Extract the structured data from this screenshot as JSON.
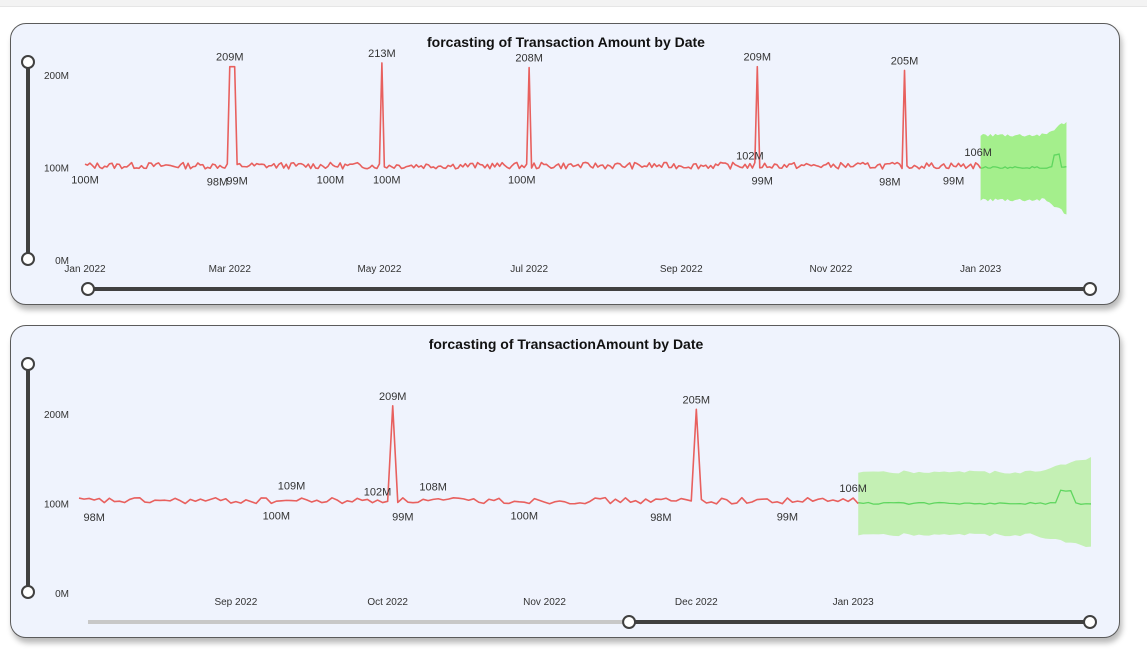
{
  "chart_data": [
    {
      "type": "line",
      "title": "forcasting of Transaction Amount by Date",
      "y_ticks": [
        "0M",
        "100M",
        "200M"
      ],
      "ylim": [
        0,
        240
      ],
      "x_range_days": [
        0,
        410
      ],
      "x_ticks": [
        {
          "label": "Jan 2022",
          "day": 0
        },
        {
          "label": "Mar 2022",
          "day": 59
        },
        {
          "label": "May 2022",
          "day": 120
        },
        {
          "label": "Jul 2022",
          "day": 181
        },
        {
          "label": "Sep 2022",
          "day": 243
        },
        {
          "label": "Nov 2022",
          "day": 304
        },
        {
          "label": "Jan 2023",
          "day": 365
        }
      ],
      "series": [
        {
          "name": "Transaction Amount",
          "color": "#e8605e",
          "baseline": 102,
          "end_day": 365,
          "spikes": [
            {
              "day": 59,
              "value": 209,
              "width": 3
            },
            {
              "day": 121,
              "value": 213,
              "width": 1
            },
            {
              "day": 181,
              "value": 208,
              "width": 1
            },
            {
              "day": 274,
              "value": 209,
              "width": 1
            },
            {
              "day": 334,
              "value": 205,
              "width": 1
            }
          ]
        },
        {
          "name": "Forecast",
          "color": "#5fd65f",
          "band_color": "#a4ef8c",
          "start_day": 365,
          "end_day": 400,
          "value": 100,
          "upper": 135,
          "lower": 65
        }
      ],
      "data_labels": [
        {
          "text": "100M",
          "day": 0,
          "value": 100,
          "pos": "below"
        },
        {
          "text": "209M",
          "day": 59,
          "value": 209,
          "pos": "above"
        },
        {
          "text": "98M",
          "day": 54,
          "value": 98,
          "pos": "below"
        },
        {
          "text": "99M",
          "day": 62,
          "value": 99,
          "pos": "below"
        },
        {
          "text": "100M",
          "day": 100,
          "value": 100,
          "pos": "below"
        },
        {
          "text": "213M",
          "day": 121,
          "value": 213,
          "pos": "above"
        },
        {
          "text": "100M",
          "day": 123,
          "value": 100,
          "pos": "below"
        },
        {
          "text": "208M",
          "day": 181,
          "value": 208,
          "pos": "above"
        },
        {
          "text": "100M",
          "day": 178,
          "value": 100,
          "pos": "below"
        },
        {
          "text": "209M",
          "day": 274,
          "value": 209,
          "pos": "above"
        },
        {
          "text": "102M",
          "day": 271,
          "value": 102,
          "pos": "above"
        },
        {
          "text": "99M",
          "day": 276,
          "value": 99,
          "pos": "below"
        },
        {
          "text": "205M",
          "day": 334,
          "value": 205,
          "pos": "above"
        },
        {
          "text": "98M",
          "day": 328,
          "value": 98,
          "pos": "below"
        },
        {
          "text": "99M",
          "day": 354,
          "value": 99,
          "pos": "below"
        },
        {
          "text": "106M",
          "day": 364,
          "value": 106,
          "pos": "above"
        }
      ],
      "x_slider": {
        "start": 0,
        "end": 1
      },
      "y_slider": {
        "start": 0,
        "end": 1
      }
    },
    {
      "type": "line",
      "title": "forcasting of  TransactionAmount by Date",
      "y_ticks": [
        "0M",
        "100M",
        "200M"
      ],
      "ylim": [
        0,
        240
      ],
      "x_range_days": [
        212,
        412
      ],
      "x_ticks": [
        {
          "label": "Sep 2022",
          "day": 243
        },
        {
          "label": "Oct 2022",
          "day": 273
        },
        {
          "label": "Nov 2022",
          "day": 304
        },
        {
          "label": "Dec 2022",
          "day": 334
        },
        {
          "label": "Jan 2023",
          "day": 365
        }
      ],
      "series": [
        {
          "name": "Transaction Amount",
          "color": "#e8605e",
          "baseline": 103,
          "end_day": 366,
          "spikes": [
            {
              "day": 274,
              "value": 209,
              "width": 1
            },
            {
              "day": 334,
              "value": 205,
              "width": 1
            }
          ]
        },
        {
          "name": "Forecast",
          "color": "#5fd65f",
          "band_color": "#c4f0b4",
          "start_day": 366,
          "end_day": 412,
          "value": 100,
          "upper": 135,
          "lower": 65
        }
      ],
      "data_labels": [
        {
          "text": "98M",
          "day": 215,
          "value": 98,
          "pos": "below"
        },
        {
          "text": "109M",
          "day": 254,
          "value": 109,
          "pos": "above"
        },
        {
          "text": "100M",
          "day": 251,
          "value": 100,
          "pos": "below"
        },
        {
          "text": "102M",
          "day": 271,
          "value": 102,
          "pos": "above"
        },
        {
          "text": "209M",
          "day": 274,
          "value": 209,
          "pos": "above"
        },
        {
          "text": "99M",
          "day": 276,
          "value": 99,
          "pos": "below"
        },
        {
          "text": "108M",
          "day": 282,
          "value": 108,
          "pos": "above"
        },
        {
          "text": "100M",
          "day": 300,
          "value": 100,
          "pos": "below"
        },
        {
          "text": "98M",
          "day": 327,
          "value": 98,
          "pos": "below"
        },
        {
          "text": "205M",
          "day": 334,
          "value": 205,
          "pos": "above"
        },
        {
          "text": "99M",
          "day": 352,
          "value": 99,
          "pos": "below"
        },
        {
          "text": "106M",
          "day": 365,
          "value": 106,
          "pos": "above"
        }
      ],
      "x_slider": {
        "start": 0.54,
        "end": 1
      },
      "y_slider": {
        "start": 0,
        "end": 1
      }
    }
  ]
}
